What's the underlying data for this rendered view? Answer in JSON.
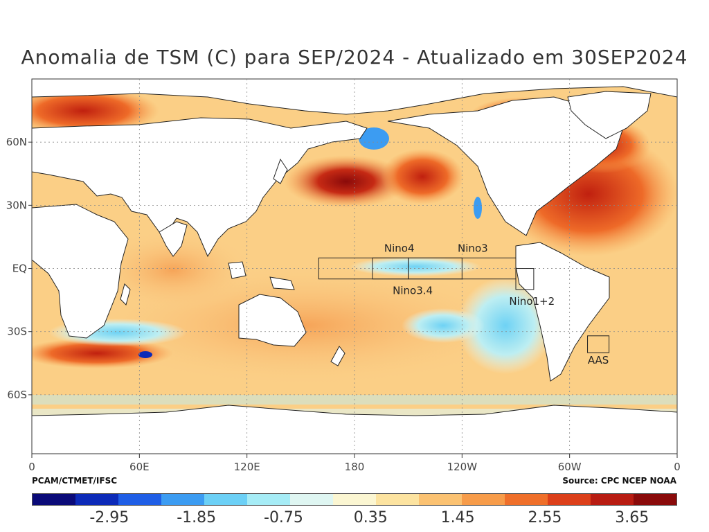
{
  "title": "Anomalia de TSM (C) para SEP/2024 - Atualizado em 30SEP2024",
  "credits": {
    "left": "PCAM/CTMET/IFSC",
    "right": "Source: CPC NCEP NOAA"
  },
  "axes": {
    "lon_ticks": [
      {
        "lon": 0,
        "label": "0"
      },
      {
        "lon": 60,
        "label": "60E"
      },
      {
        "lon": 120,
        "label": "120E"
      },
      {
        "lon": 180,
        "label": "180"
      },
      {
        "lon": 240,
        "label": "120W"
      },
      {
        "lon": 300,
        "label": "60W"
      },
      {
        "lon": 360,
        "label": "0"
      }
    ],
    "lat_ticks": [
      {
        "lat": 60,
        "label": "60N"
      },
      {
        "lat": 30,
        "label": "30N"
      },
      {
        "lat": 0,
        "label": "EQ"
      },
      {
        "lat": -30,
        "label": "30S"
      },
      {
        "lat": -60,
        "label": "60S"
      }
    ],
    "lon_range": [
      0,
      360
    ],
    "lat_range": [
      -88,
      90
    ]
  },
  "regions": [
    {
      "name": "Nino4",
      "lon": [
        160,
        210
      ],
      "lat": [
        -5,
        5
      ]
    },
    {
      "name": "Nino3.4",
      "lon": [
        190,
        240
      ],
      "lat": [
        -5,
        5
      ]
    },
    {
      "name": "Nino3",
      "lon": [
        210,
        270
      ],
      "lat": [
        -5,
        5
      ]
    },
    {
      "name": "Nino1+2",
      "lon": [
        270,
        280
      ],
      "lat": [
        -10,
        0
      ]
    },
    {
      "name": "AAS",
      "lon": [
        310,
        322
      ],
      "lat": [
        -40,
        -32
      ]
    }
  ],
  "colorbar": {
    "colors": [
      "#0a0a78",
      "#0c2ab8",
      "#1f5ee6",
      "#3c9cf2",
      "#6cd0f6",
      "#a6ecf6",
      "#dff6f2",
      "#fbf6d2",
      "#fce3a0",
      "#fbc272",
      "#f79c4a",
      "#ef6f2a",
      "#dc3f1a",
      "#b81c12",
      "#8a0a0a"
    ],
    "labels": [
      "-2.95",
      "-1.85",
      "-0.75",
      "0.35",
      "1.45",
      "2.55",
      "3.65"
    ]
  }
}
